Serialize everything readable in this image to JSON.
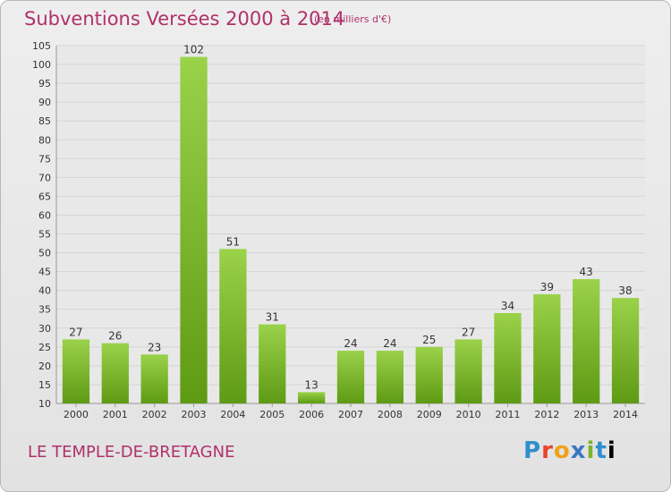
{
  "header": {
    "title": "Subventions Versées 2000 à 2014",
    "unit_note": "(en milliers d'€)"
  },
  "footer": {
    "commune": "LE TEMPLE-DE-BRETAGNE",
    "logo_letters": [
      "P",
      "r",
      "o",
      "x",
      "i",
      "t",
      "i"
    ]
  },
  "colors": {
    "title": "#b0316a",
    "bar_light": "#9ad24a",
    "bar_dark": "#5f9a14",
    "grid": "#d4d4d4",
    "axis_text": "#333333"
  },
  "chart_data": {
    "type": "bar",
    "title": "Subventions Versées 2000 à 2014",
    "subtitle": "(en milliers d'€)",
    "xlabel": "",
    "ylabel": "",
    "categories": [
      "2000",
      "2001",
      "2002",
      "2003",
      "2004",
      "2005",
      "2006",
      "2007",
      "2008",
      "2009",
      "2010",
      "2011",
      "2012",
      "2013",
      "2014"
    ],
    "values": [
      27,
      26,
      23,
      102,
      51,
      31,
      13,
      24,
      24,
      25,
      27,
      34,
      39,
      43,
      38
    ],
    "data_labels": [
      "27",
      "26",
      "23",
      "102",
      "51",
      "31",
      "13",
      "24",
      "24",
      "25",
      "27",
      "34",
      "39",
      "43",
      "38"
    ],
    "ylim": [
      10,
      105
    ],
    "yticks": [
      10,
      15,
      20,
      25,
      30,
      35,
      40,
      45,
      50,
      55,
      60,
      65,
      70,
      75,
      80,
      85,
      90,
      95,
      100,
      105
    ],
    "grid": true,
    "legend": "none"
  }
}
